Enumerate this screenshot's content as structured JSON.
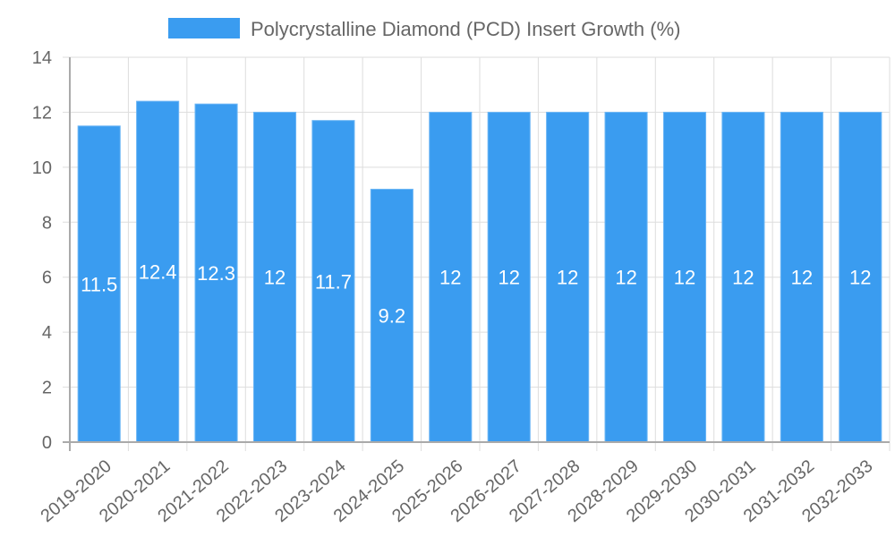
{
  "chart_data": {
    "type": "bar",
    "title": "",
    "xlabel": "",
    "ylabel": "",
    "legend": {
      "position": "top",
      "entries": [
        {
          "label": "Polycrystalline Diamond (PCD) Insert Growth (%)",
          "color": "#3a9cf0"
        }
      ]
    },
    "ylim": [
      0,
      14
    ],
    "yticks": [
      0,
      2,
      4,
      6,
      8,
      10,
      12,
      14
    ],
    "grid": true,
    "categories": [
      "2019-2020",
      "2020-2021",
      "2021-2022",
      "2022-2023",
      "2023-2024",
      "2024-2025",
      "2025-2026",
      "2026-2027",
      "2027-2028",
      "2028-2029",
      "2029-2030",
      "2030-2031",
      "2031-2032",
      "2032-2033"
    ],
    "series": [
      {
        "name": "Polycrystalline Diamond (PCD) Insert Growth (%)",
        "color": "#3a9cf0",
        "values": [
          11.5,
          12.4,
          12.3,
          12,
          11.7,
          9.2,
          12,
          12,
          12,
          12,
          12,
          12,
          12,
          12
        ],
        "labels": [
          "11.5",
          "12.4",
          "12.3",
          "12",
          "11.7",
          "9.2",
          "12",
          "12",
          "12",
          "12",
          "12",
          "12",
          "12",
          "12"
        ]
      }
    ]
  },
  "colors": {
    "bar_fill": "#3a9cf0",
    "bar_border": "#6cb6f5",
    "grid": "#dddddd",
    "axis": "#aaaaaa",
    "text": "#666666",
    "data_label": "#ffffff"
  }
}
